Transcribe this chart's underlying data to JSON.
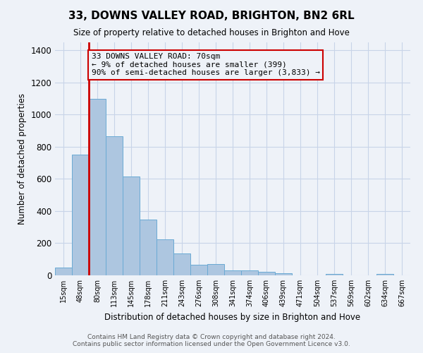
{
  "title": "33, DOWNS VALLEY ROAD, BRIGHTON, BN2 6RL",
  "subtitle": "Size of property relative to detached houses in Brighton and Hove",
  "xlabel": "Distribution of detached houses by size in Brighton and Hove",
  "ylabel": "Number of detached properties",
  "footer1": "Contains HM Land Registry data © Crown copyright and database right 2024.",
  "footer2": "Contains public sector information licensed under the Open Government Licence v3.0.",
  "bin_labels": [
    "15sqm",
    "48sqm",
    "80sqm",
    "113sqm",
    "145sqm",
    "178sqm",
    "211sqm",
    "243sqm",
    "276sqm",
    "308sqm",
    "341sqm",
    "374sqm",
    "406sqm",
    "439sqm",
    "471sqm",
    "504sqm",
    "537sqm",
    "569sqm",
    "602sqm",
    "634sqm",
    "667sqm"
  ],
  "bar_values": [
    50,
    750,
    1100,
    865,
    615,
    345,
    225,
    135,
    65,
    70,
    30,
    30,
    20,
    15,
    0,
    0,
    10,
    0,
    0,
    10,
    0
  ],
  "bar_color": "#adc6e0",
  "bar_edgecolor": "#6aaad4",
  "grid_color": "#c8d4e8",
  "background_color": "#eef2f8",
  "vline_color": "#cc0000",
  "annotation_text": "33 DOWNS VALLEY ROAD: 70sqm\n← 9% of detached houses are smaller (399)\n90% of semi-detached houses are larger (3,833) →",
  "annotation_box_color": "#cc0000",
  "ylim": [
    0,
    1450
  ],
  "yticks": [
    0,
    200,
    400,
    600,
    800,
    1000,
    1200,
    1400
  ]
}
